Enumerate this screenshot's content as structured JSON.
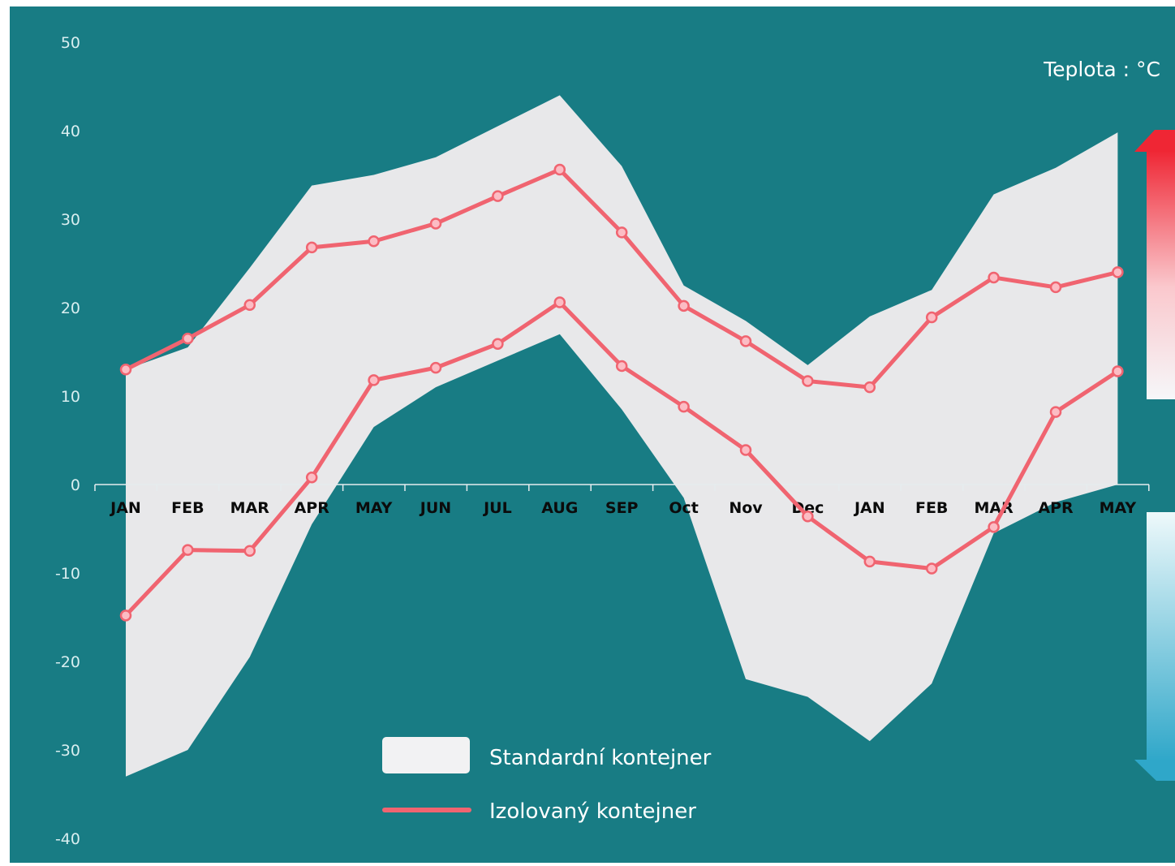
{
  "chart_data": {
    "type": "area",
    "unit_label": "Teplota : °C",
    "categories": [
      "JAN",
      "FEB",
      "MAR",
      "APR",
      "MAY",
      "JUN",
      "JUL",
      "AUG",
      "SEP",
      "Oct",
      "Nov",
      "Dec",
      "JAN",
      "FEB",
      "MAR",
      "APR",
      "MAY"
    ],
    "y_ticks": [
      "50",
      "40",
      "30",
      "20",
      "10",
      "0",
      "-10",
      "-20",
      "-30",
      "-40"
    ],
    "ylim": [
      -40,
      50
    ],
    "grid": false,
    "legend_position": "bottom-center",
    "series": [
      {
        "name": "Standardní kontejner",
        "kind": "band",
        "upper": [
          13,
          15.5,
          24.5,
          33.8,
          35,
          37,
          40.5,
          44,
          36,
          22.5,
          18.5,
          13.5,
          19,
          22,
          32.8,
          35.8,
          39.8
        ],
        "lower": [
          -33,
          -30,
          -19.5,
          -4.5,
          6.5,
          11,
          14,
          17,
          8.5,
          -1.5,
          -22,
          -24,
          -29,
          -22.5,
          -5.5,
          -2,
          0
        ]
      },
      {
        "name": "Izolovaný kontejner",
        "kind": "band-lines",
        "upper": [
          13,
          16.5,
          20.3,
          26.8,
          27.5,
          29.5,
          32.6,
          35.6,
          28.5,
          20.2,
          16.2,
          11.7,
          11,
          18.9,
          23.4,
          22.3,
          24
        ],
        "lower": [
          -14.8,
          -7.4,
          -7.5,
          0.8,
          11.8,
          13.2,
          15.9,
          20.6,
          13.4,
          8.8,
          3.9,
          -3.6,
          -8.7,
          -9.5,
          -4.8,
          8.2,
          12.8
        ]
      }
    ]
  },
  "colors": {
    "background": "#187c84",
    "band_fill": "#e8e8ea",
    "line": "#f06470",
    "marker_fill": "#fcbcc4",
    "arrow_hot": "#ef2e3c",
    "arrow_cold": "#35b6cf"
  }
}
